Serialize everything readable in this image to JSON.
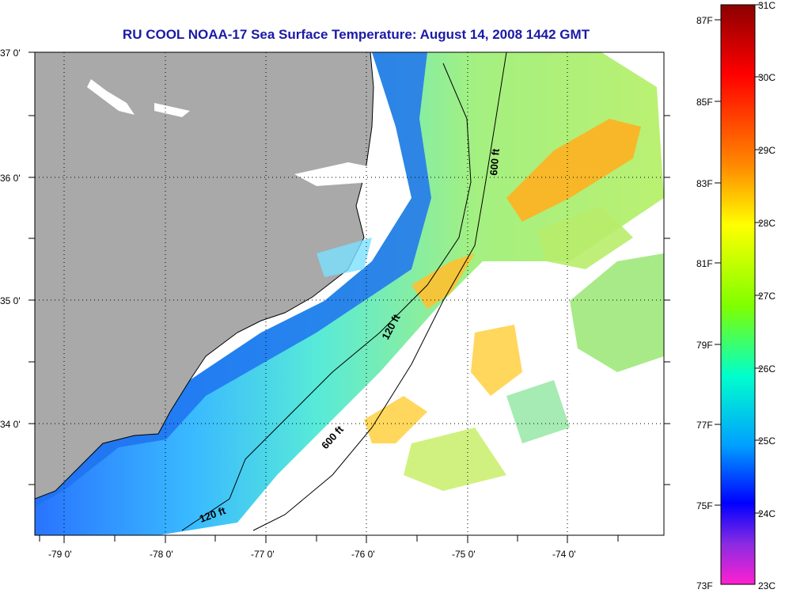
{
  "title": "RU COOL  NOAA-17  Sea Surface Temperature:  August 14, 2008 1442 GMT",
  "map": {
    "lat_labels": [
      "37 0'",
      "36 0'",
      "35 0'",
      "34 0'"
    ],
    "lon_labels": [
      "-79 0'",
      "-78 0'",
      "-77 0'",
      "-76 0'",
      "-75 0'",
      "-74 0'"
    ],
    "contours": [
      "600 ft",
      "120 ft",
      "600 ft",
      "120 ft"
    ],
    "colors": {
      "land": "#a9a9a9",
      "cloud": "#ffffff",
      "border": "#000000"
    }
  },
  "colorbar": {
    "fahrenheit": [
      "87F",
      "85F",
      "83F",
      "81F",
      "79F",
      "77F",
      "75F",
      "73F"
    ],
    "celsius": [
      "31C",
      "30C",
      "29C",
      "28C",
      "27C",
      "26C",
      "25C",
      "24C",
      "23C"
    ],
    "gradient": [
      "#8b0000",
      "#ff0000",
      "#ff8c00",
      "#ffff00",
      "#7fff00",
      "#00ffcc",
      "#00a0ff",
      "#0000ff",
      "#8a2be2",
      "#ff20d0"
    ]
  }
}
